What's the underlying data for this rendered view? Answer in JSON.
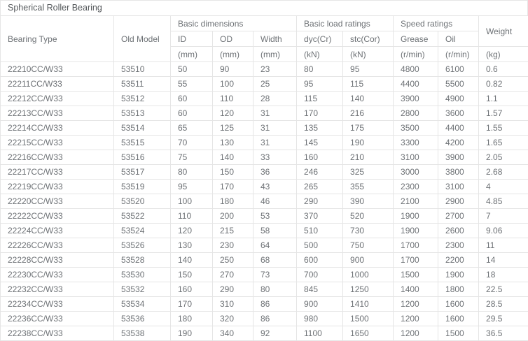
{
  "title": "Spherical Roller Bearing",
  "colors": {
    "border": "#e5e5e5",
    "text": "#6e7276",
    "title_text": "#54585b",
    "background": "#ffffff"
  },
  "table": {
    "columns": {
      "bearing_type": "Bearing Type",
      "old_model": "Old Model",
      "weight": "Weight",
      "groups": {
        "basic_dimensions": "Basic dimensions",
        "basic_load_ratings": "Basic load ratings",
        "speed_ratings": "Speed ratings"
      },
      "sub": {
        "id": "ID",
        "od": "OD",
        "width": "Width",
        "dyc": "dyc(Cr)",
        "stc": "stc(Cor)",
        "grease": "Grease",
        "oil": "Oil"
      },
      "units": {
        "mm": "(mm)",
        "kn": "(kN)",
        "rmin": "(r/min)",
        "kg": "(kg)"
      }
    },
    "rows": [
      [
        "22210CC/W33",
        "53510",
        "50",
        "90",
        "23",
        "80",
        "95",
        "4800",
        "6100",
        "0.6"
      ],
      [
        "22211CC/W33",
        "53511",
        "55",
        "100",
        "25",
        "95",
        "115",
        "4400",
        "5500",
        "0.82"
      ],
      [
        "22212CC/W33",
        "53512",
        "60",
        "110",
        "28",
        "115",
        "140",
        "3900",
        "4900",
        "1.1"
      ],
      [
        "22213CC/W33",
        "53513",
        "60",
        "120",
        "31",
        "170",
        "216",
        "2800",
        "3600",
        "1.57"
      ],
      [
        "22214CC/W33",
        "53514",
        "65",
        "125",
        "31",
        "135",
        "175",
        "3500",
        "4400",
        "1.55"
      ],
      [
        "22215CC/W33",
        "53515",
        "70",
        "130",
        "31",
        "145",
        "190",
        "3300",
        "4200",
        "1.65"
      ],
      [
        "22216CC/W33",
        "53516",
        "75",
        "140",
        "33",
        "160",
        "210",
        "3100",
        "3900",
        "2.05"
      ],
      [
        "22217CC/W33",
        "53517",
        "80",
        "150",
        "36",
        "246",
        "325",
        "3000",
        "3800",
        "2.68"
      ],
      [
        "22219CC/W33",
        "53519",
        "95",
        "170",
        "43",
        "265",
        "355",
        "2300",
        "3100",
        "4"
      ],
      [
        "22220CC/W33",
        "53520",
        "100",
        "180",
        "46",
        "290",
        "390",
        "2100",
        "2900",
        "4.85"
      ],
      [
        "22222CC/W33",
        "53522",
        "110",
        "200",
        "53",
        "370",
        "520",
        "1900",
        "2700",
        "7"
      ],
      [
        "22224CC/W33",
        "53524",
        "120",
        "215",
        "58",
        "510",
        "730",
        "1900",
        "2600",
        "9.06"
      ],
      [
        "22226CC/W33",
        "53526",
        "130",
        "230",
        "64",
        "500",
        "750",
        "1700",
        "2300",
        "11"
      ],
      [
        "22228CC/W33",
        "53528",
        "140",
        "250",
        "68",
        "600",
        "900",
        "1700",
        "2200",
        "14"
      ],
      [
        "22230CC/W33",
        "53530",
        "150",
        "270",
        "73",
        "700",
        "1000",
        "1500",
        "1900",
        "18"
      ],
      [
        "22232CC/W33",
        "53532",
        "160",
        "290",
        "80",
        "845",
        "1250",
        "1400",
        "1800",
        "22.5"
      ],
      [
        "22234CC/W33",
        "53534",
        "170",
        "310",
        "86",
        "900",
        "1410",
        "1200",
        "1600",
        "28.5"
      ],
      [
        "22236CC/W33",
        "53536",
        "180",
        "320",
        "86",
        "980",
        "1500",
        "1200",
        "1600",
        "29.5"
      ],
      [
        "22238CC/W33",
        "53538",
        "190",
        "340",
        "92",
        "1100",
        "1650",
        "1200",
        "1500",
        "36.5"
      ]
    ]
  }
}
